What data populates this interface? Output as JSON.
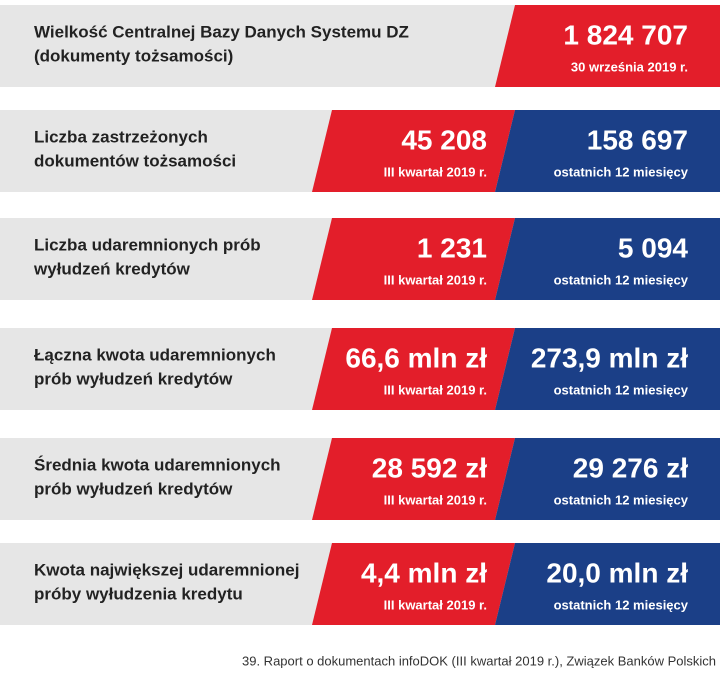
{
  "rows": [
    {
      "label": [
        "Wielkość Centralnej Bazy Danych Systemu DZ",
        "(dokumenty tożsamości)"
      ],
      "red": {
        "value": "1 824 707",
        "note": "30 września 2019 r."
      }
    },
    {
      "label": [
        "Liczba zastrzeżonych",
        "dokumentów tożsamości"
      ],
      "red": {
        "value": "45 208",
        "note": "III kwartał 2019 r."
      },
      "blue": {
        "value": "158 697",
        "note": "ostatnich 12 miesięcy"
      }
    },
    {
      "label": [
        "Liczba udaremnionych prób",
        "wyłudzeń kredytów"
      ],
      "red": {
        "value": "1 231",
        "note": "III kwartał 2019 r."
      },
      "blue": {
        "value": "5 094",
        "note": "ostatnich 12 miesięcy"
      }
    },
    {
      "label": [
        "Łączna kwota udaremnionych",
        "prób wyłudzeń kredytów"
      ],
      "red": {
        "value": "66,6 mln zł",
        "note": "III kwartał 2019 r."
      },
      "blue": {
        "value": "273,9 mln zł",
        "note": "ostatnich 12 miesięcy"
      }
    },
    {
      "label": [
        "Średnia kwota udaremnionych",
        "prób wyłudzeń kredytów"
      ],
      "red": {
        "value": "28 592 zł",
        "note": "III kwartał 2019 r."
      },
      "blue": {
        "value": "29 276 zł",
        "note": "ostatnich 12 miesięcy"
      }
    },
    {
      "label": [
        "Kwota największej udaremnionej",
        "próby wyłudzenia kredytu"
      ],
      "red": {
        "value": "4,4 mln zł",
        "note": "III kwartał 2019 r."
      },
      "blue": {
        "value": "20,0 mln zł",
        "note": "ostatnich 12 miesięcy"
      }
    }
  ],
  "caption": "39. Raport o dokumentach infoDOK (III kwartał 2019 r.), Związek Banków Polskich"
}
